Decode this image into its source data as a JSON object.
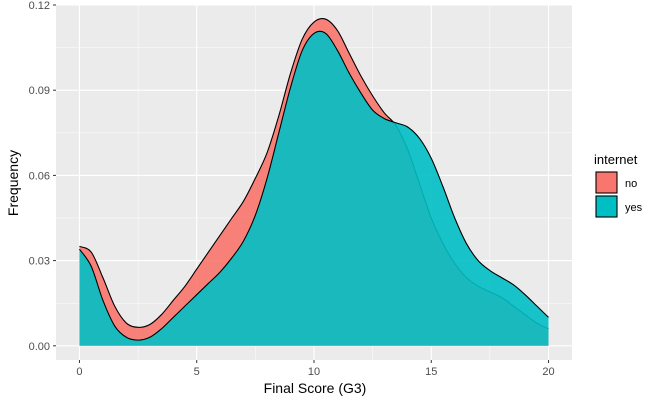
{
  "chart_data": {
    "type": "area",
    "subtype": "density",
    "title": "",
    "xlabel": "Final Score (G3)",
    "ylabel": "Frequency",
    "xlim": [
      -1,
      21
    ],
    "ylim": [
      -0.005,
      0.12
    ],
    "x_ticks": [
      0,
      5,
      10,
      15,
      20
    ],
    "x_tick_labels": [
      "0",
      "5",
      "10",
      "15",
      "20"
    ],
    "y_ticks": [
      0,
      0.03,
      0.06,
      0.09,
      0.12
    ],
    "y_tick_labels": [
      "0.00",
      "0.03",
      "0.06",
      "0.09",
      "0.12"
    ],
    "grid": true,
    "legend": {
      "title": "internet",
      "position": "right",
      "entries": [
        {
          "label": "no",
          "color": "#F8766D"
        },
        {
          "label": "yes",
          "color": "#00BFC4"
        }
      ]
    },
    "series": [
      {
        "name": "no",
        "color": "#F8766D",
        "x": [
          0,
          0.5,
          1,
          1.5,
          2,
          2.5,
          3,
          3.5,
          4,
          4.5,
          5,
          5.5,
          6,
          6.5,
          7,
          7.5,
          8,
          8.5,
          9,
          9.5,
          10,
          10.5,
          11,
          11.5,
          12,
          12.5,
          13,
          13.5,
          14,
          14.5,
          15,
          15.5,
          16,
          16.5,
          17,
          17.5,
          18,
          18.5,
          19,
          19.5,
          20
        ],
        "y": [
          0.035,
          0.033,
          0.024,
          0.014,
          0.008,
          0.0065,
          0.0075,
          0.011,
          0.016,
          0.021,
          0.027,
          0.033,
          0.039,
          0.045,
          0.051,
          0.059,
          0.068,
          0.081,
          0.096,
          0.108,
          0.114,
          0.115,
          0.111,
          0.103,
          0.095,
          0.088,
          0.082,
          0.0775,
          0.069,
          0.057,
          0.045,
          0.036,
          0.029,
          0.024,
          0.021,
          0.019,
          0.017,
          0.014,
          0.011,
          0.008,
          0.006
        ]
      },
      {
        "name": "yes",
        "color": "#00BFC4",
        "x": [
          0,
          0.5,
          1,
          1.5,
          2,
          2.5,
          3,
          3.5,
          4,
          4.5,
          5,
          5.5,
          6,
          6.5,
          7,
          7.5,
          8,
          8.5,
          9,
          9.5,
          10,
          10.5,
          11,
          11.5,
          12,
          12.5,
          13,
          13.5,
          14,
          14.5,
          15,
          15.5,
          16,
          16.5,
          17,
          17.5,
          18,
          18.5,
          19,
          19.5,
          20
        ],
        "y": [
          0.034,
          0.028,
          0.016,
          0.007,
          0.003,
          0.002,
          0.003,
          0.006,
          0.01,
          0.014,
          0.018,
          0.022,
          0.026,
          0.031,
          0.037,
          0.046,
          0.059,
          0.075,
          0.091,
          0.104,
          0.11,
          0.11,
          0.104,
          0.096,
          0.089,
          0.083,
          0.08,
          0.0785,
          0.077,
          0.073,
          0.066,
          0.056,
          0.045,
          0.036,
          0.03,
          0.0265,
          0.024,
          0.0215,
          0.018,
          0.014,
          0.01
        ]
      }
    ]
  }
}
